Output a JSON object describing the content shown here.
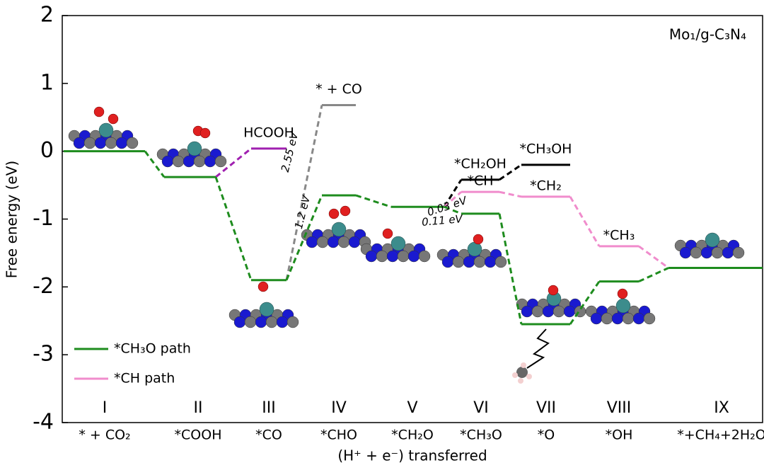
{
  "chart_data": {
    "type": "energy_diagram",
    "panel_label": "Mo₁/g-C₃N₄",
    "y_label": "Free energy (eV)",
    "x_label": "(H⁺ + e⁻) transferred",
    "categories": [
      "I",
      "II",
      "III",
      "IV",
      "V",
      "VI",
      "VII",
      "VIII",
      "IX"
    ],
    "category_names": [
      "* + CO₂",
      "*COOH",
      "*CO",
      "*CHO",
      "*CH₂O",
      "*CH₃O",
      "*O",
      "*OH",
      "*+CH₄+2H₂O"
    ],
    "ylim": [
      -4,
      2
    ],
    "yticks": [
      -4,
      -3,
      -2,
      -1,
      0,
      1,
      2
    ],
    "legend": "lower left",
    "series": [
      {
        "name": "*CH₃O path",
        "color": "#1e8c1e",
        "values": [
          0,
          -0.38,
          -1.9,
          -0.65,
          -0.82,
          -0.92,
          -2.55,
          -1.92,
          -1.72
        ]
      },
      {
        "name": "*CH path",
        "color": "#f08ccc",
        "values": [
          null,
          null,
          null,
          null,
          -0.82,
          -0.6,
          -0.67,
          -1.4,
          -1.72
        ],
        "labels": [
          null,
          null,
          null,
          null,
          null,
          "*CH",
          "*CH₂",
          "*CH₃",
          null
        ]
      }
    ],
    "branches": [
      {
        "color": "#a020b0",
        "label_color": "#a020b0",
        "values": [
          null,
          -0.38,
          0.04,
          null,
          null,
          null,
          null,
          null,
          null
        ],
        "labels": [
          null,
          null,
          "HCOOH",
          null,
          null,
          null,
          null,
          null,
          null
        ]
      },
      {
        "color": "#888888",
        "label_color": "#000000",
        "values": [
          null,
          null,
          -1.9,
          0.68,
          null,
          null,
          null,
          null,
          null
        ],
        "labels": [
          null,
          null,
          null,
          "* + CO",
          null,
          null,
          null,
          null,
          null
        ]
      },
      {
        "color": "#000000",
        "label_color": "#000000",
        "values": [
          null,
          null,
          null,
          null,
          -0.82,
          -0.42,
          -0.2,
          null,
          null
        ],
        "labels": [
          null,
          null,
          null,
          null,
          null,
          "*CH₂OH",
          "*CH₃OH",
          null,
          null
        ]
      }
    ],
    "annotations": [
      {
        "text": "2.55 eV",
        "color": "#c62828"
      },
      {
        "text": "1.2 eV",
        "color": "#1e8c1e"
      },
      {
        "text": "0.11 eV",
        "color": "#1e8c1e"
      },
      {
        "text": "0.03 eV",
        "color": "#f08ccc"
      }
    ]
  }
}
